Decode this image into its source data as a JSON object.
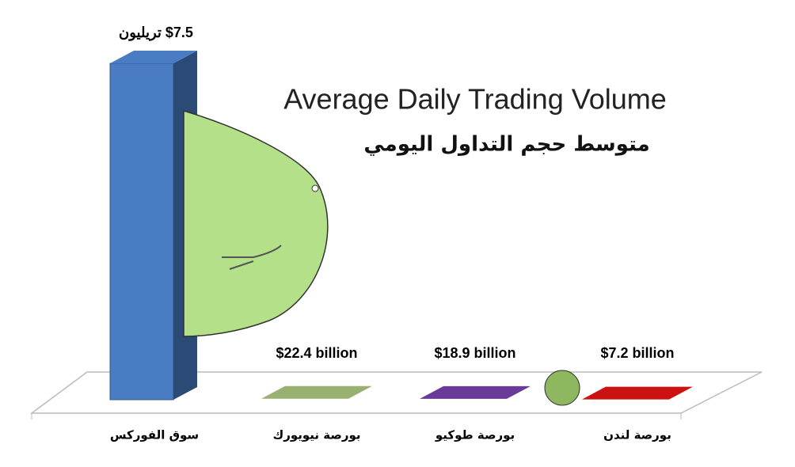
{
  "chart_data": {
    "type": "bar3d",
    "title": "Average Daily Trading Volume",
    "subtitle": "متوسط حجم التداول اليومي",
    "categories": [
      "سوق الفوركس",
      "بورصة نيويورك",
      "بورصة طوكيو",
      "بورصة لندن"
    ],
    "values": [
      7500,
      22.4,
      18.9,
      7.2
    ],
    "value_labels": [
      "$7.5 تريليون",
      "$22.4 billion",
      "$18.9 billion",
      "$7.2 billion"
    ],
    "colors": [
      "#4a7cc4",
      "#98b070",
      "#6a3a98",
      "#cc1111"
    ]
  }
}
